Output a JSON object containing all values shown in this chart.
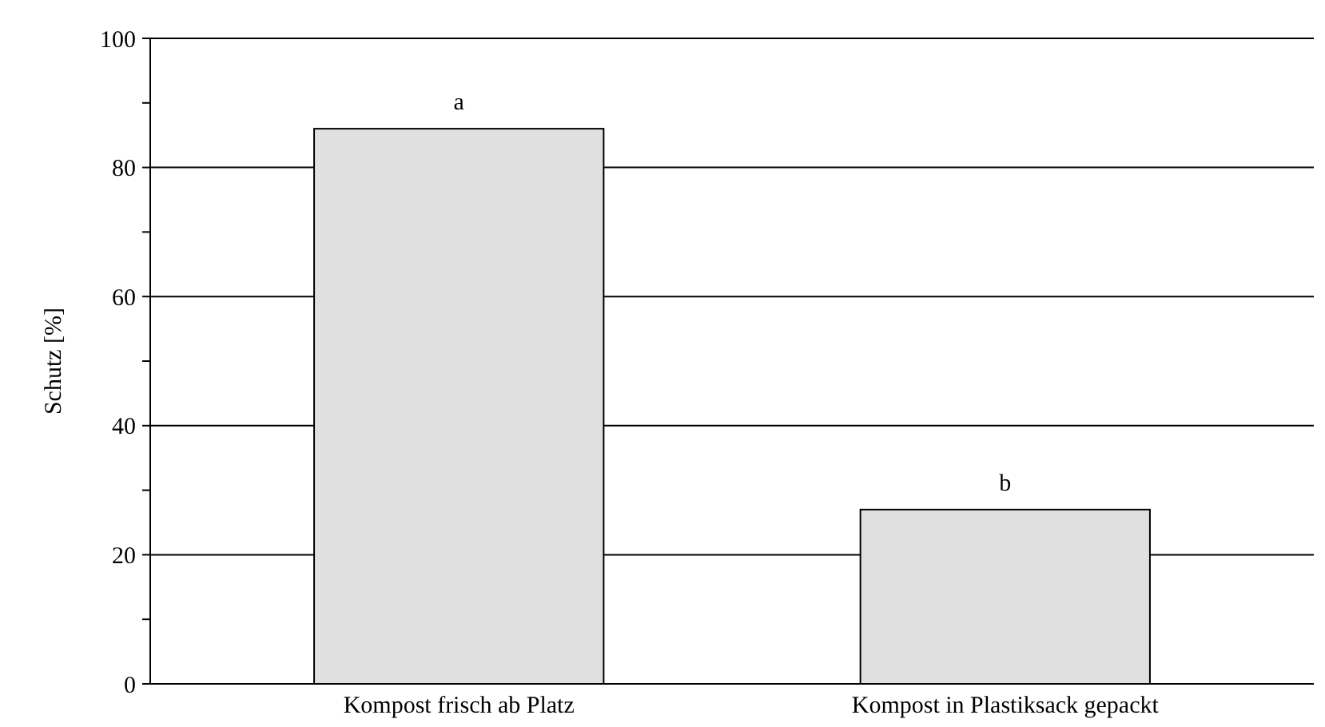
{
  "chart_data": {
    "type": "bar",
    "ylabel": "Schutz [%]",
    "categories": [
      "Kompost frisch ab Platz",
      "Kompost in Plastiksack gepackt"
    ],
    "values": [
      86,
      27
    ],
    "color": "#e0e0e0",
    "ylim": [
      0,
      100
    ],
    "yticks": [
      0,
      {
        "value": 10,
        "label": null
      },
      20,
      {
        "value": 30,
        "label": null
      },
      40,
      {
        "value": 50,
        "label": null
      },
      60,
      {
        "value": 70,
        "label": null
      },
      80,
      {
        "value": 90,
        "label": null
      },
      100
    ],
    "grid": "y",
    "annotations": [
      {
        "text": "a",
        "x": "Kompost frisch ab Platz",
        "y": 86
      },
      {
        "text": "b",
        "x": "Kompost in Plastiksack gepackt",
        "y": 27
      }
    ]
  }
}
